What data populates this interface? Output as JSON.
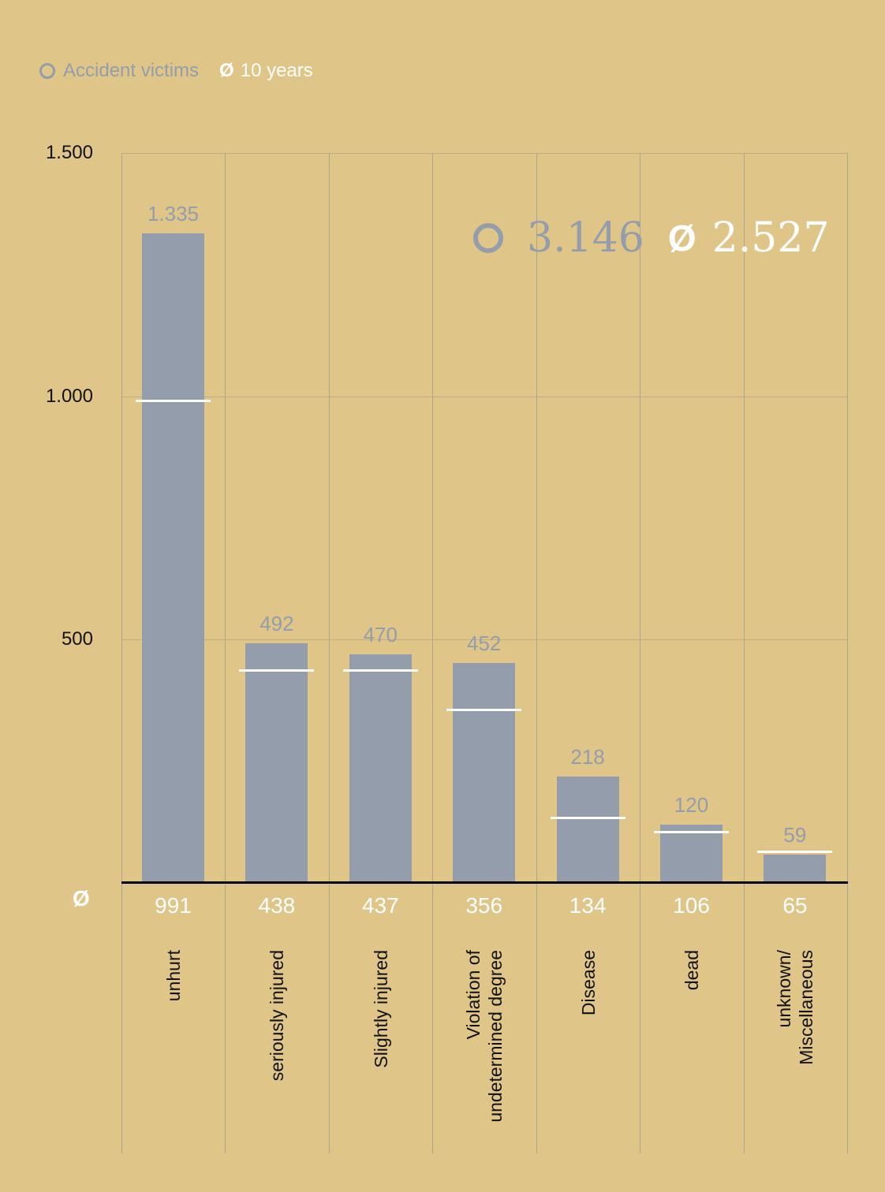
{
  "legend": {
    "victims_label": "Accident victims",
    "avg_symbol": "Ø",
    "avg_label": "10 years"
  },
  "totals": {
    "victims_value": "3.146",
    "avg_symbol": "Ø",
    "avg_value": "2.527"
  },
  "axis": {
    "avg_row_symbol": "Ø",
    "y_ticks": [
      "1.500",
      "1.000",
      "500"
    ]
  },
  "colors": {
    "background": "#dfc688",
    "bar": "#939dab",
    "avg_line": "#ffffff",
    "grid": "#b0a58a"
  },
  "bars": [
    {
      "category": "unhurt",
      "value_label": "1.335",
      "avg_label": "991"
    },
    {
      "category": "seriously injured",
      "value_label": "492",
      "avg_label": "438"
    },
    {
      "category": "Slightly injured",
      "value_label": "470",
      "avg_label": "437"
    },
    {
      "category": "Violation of\nundetermined degree",
      "value_label": "452",
      "avg_label": "356"
    },
    {
      "category": "Disease",
      "value_label": "218",
      "avg_label": "134"
    },
    {
      "category": "dead",
      "value_label": "120",
      "avg_label": "106"
    },
    {
      "category": "unknown/\nMiscellaneous",
      "value_label": "59",
      "avg_label": "65"
    }
  ],
  "chart_data": {
    "type": "bar",
    "title": "",
    "categories": [
      "unhurt",
      "seriously injured",
      "Slightly injured",
      "Violation of undetermined degree",
      "Disease",
      "dead",
      "unknown/Miscellaneous"
    ],
    "series": [
      {
        "name": "Accident victims",
        "values": [
          1335,
          492,
          470,
          452,
          218,
          120,
          59
        ]
      },
      {
        "name": "Ø 10 years",
        "values": [
          991,
          438,
          437,
          356,
          134,
          106,
          65
        ],
        "style": "marker-line"
      }
    ],
    "totals": {
      "Accident victims": 3146,
      "Ø 10 years": 2527
    },
    "xlabel": "",
    "ylabel": "",
    "ylim": [
      0,
      1500
    ],
    "yticks": [
      500,
      1000,
      1500
    ],
    "grid": true,
    "legend_position": "top-left"
  }
}
